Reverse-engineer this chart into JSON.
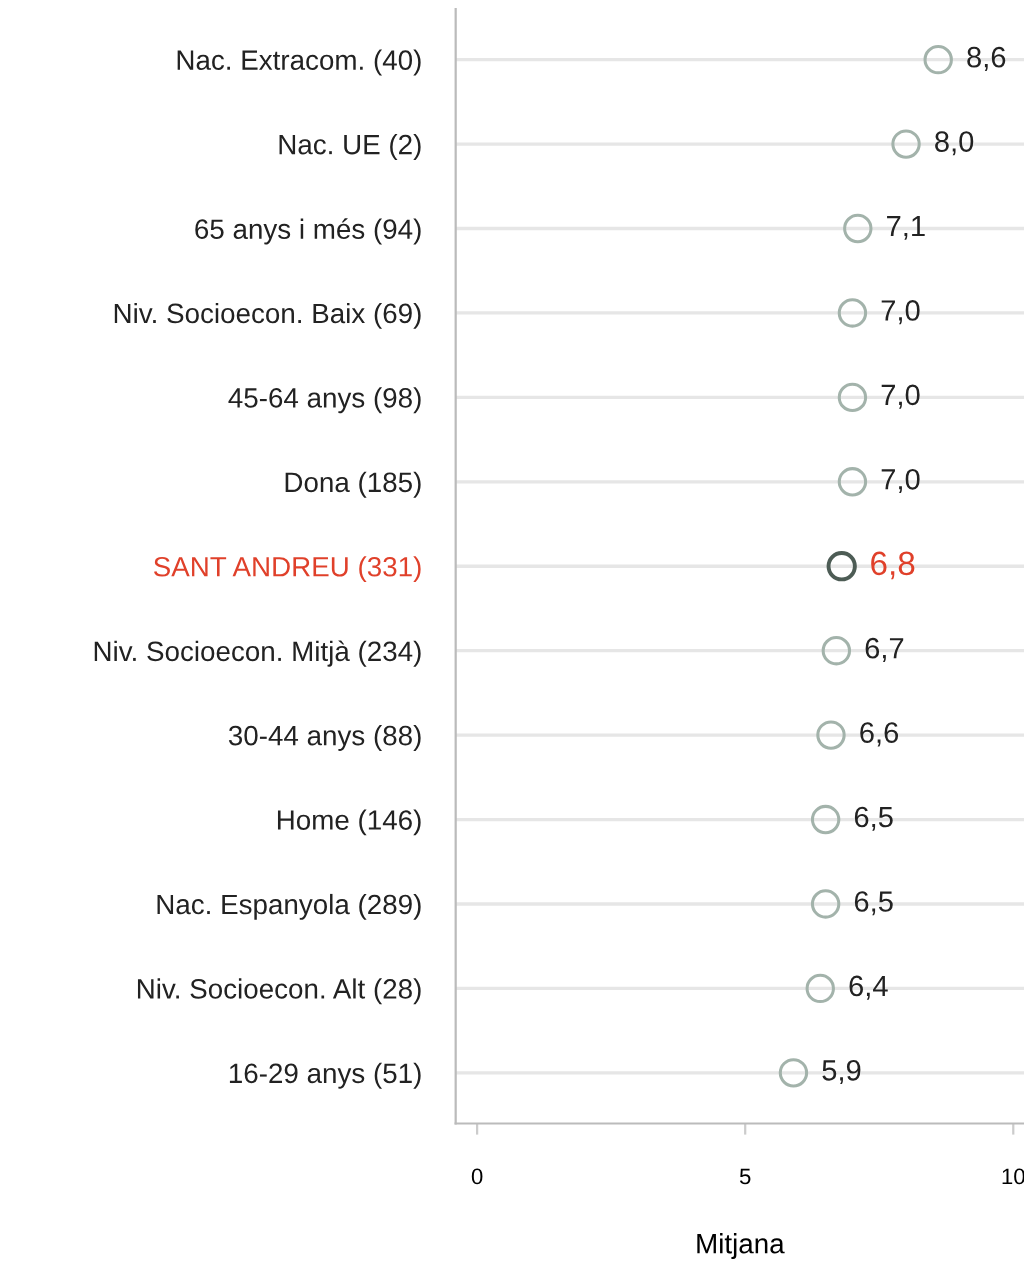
{
  "chart_data": {
    "type": "scatter",
    "orientation": "horizontal",
    "xlabel": "Mitjana",
    "categories": [
      "Nac. Extracom. (40)",
      "Nac. UE (2)",
      "65 anys i més (94)",
      "Niv. Socioecon. Baix (69)",
      "45-64 anys (98)",
      "Dona (185)",
      "SANT ANDREU (331)",
      "Niv. Socioecon. Mitjà (234)",
      "30-44 anys (88)",
      "Home (146)",
      "Nac. Espanyola (289)",
      "Niv. Socioecon. Alt (28)",
      "16-29 anys (51)"
    ],
    "values": [
      8.6,
      8.0,
      7.1,
      7.0,
      7.0,
      7.0,
      6.8,
      6.7,
      6.6,
      6.5,
      6.5,
      6.4,
      5.9
    ],
    "value_labels": [
      "8,6",
      "8,0",
      "7,1",
      "7,0",
      "7,0",
      "7,0",
      "6,8",
      "6,7",
      "6,6",
      "6,5",
      "6,5",
      "6,4",
      "5,9"
    ],
    "colors": [
      "#a3b3ab",
      "#a3b3ab",
      "#a3b3ab",
      "#a3b3ab",
      "#a3b3ab",
      "#a3b3ab",
      "#4d5c55",
      "#a3b3ab",
      "#a3b3ab",
      "#a3b3ab",
      "#a3b3ab",
      "#a3b3ab",
      "#a3b3ab"
    ],
    "xlim": [
      -0.4,
      10.2
    ],
    "xticks": [
      0,
      5,
      10
    ],
    "grid": "y",
    "marker": "circle"
  }
}
